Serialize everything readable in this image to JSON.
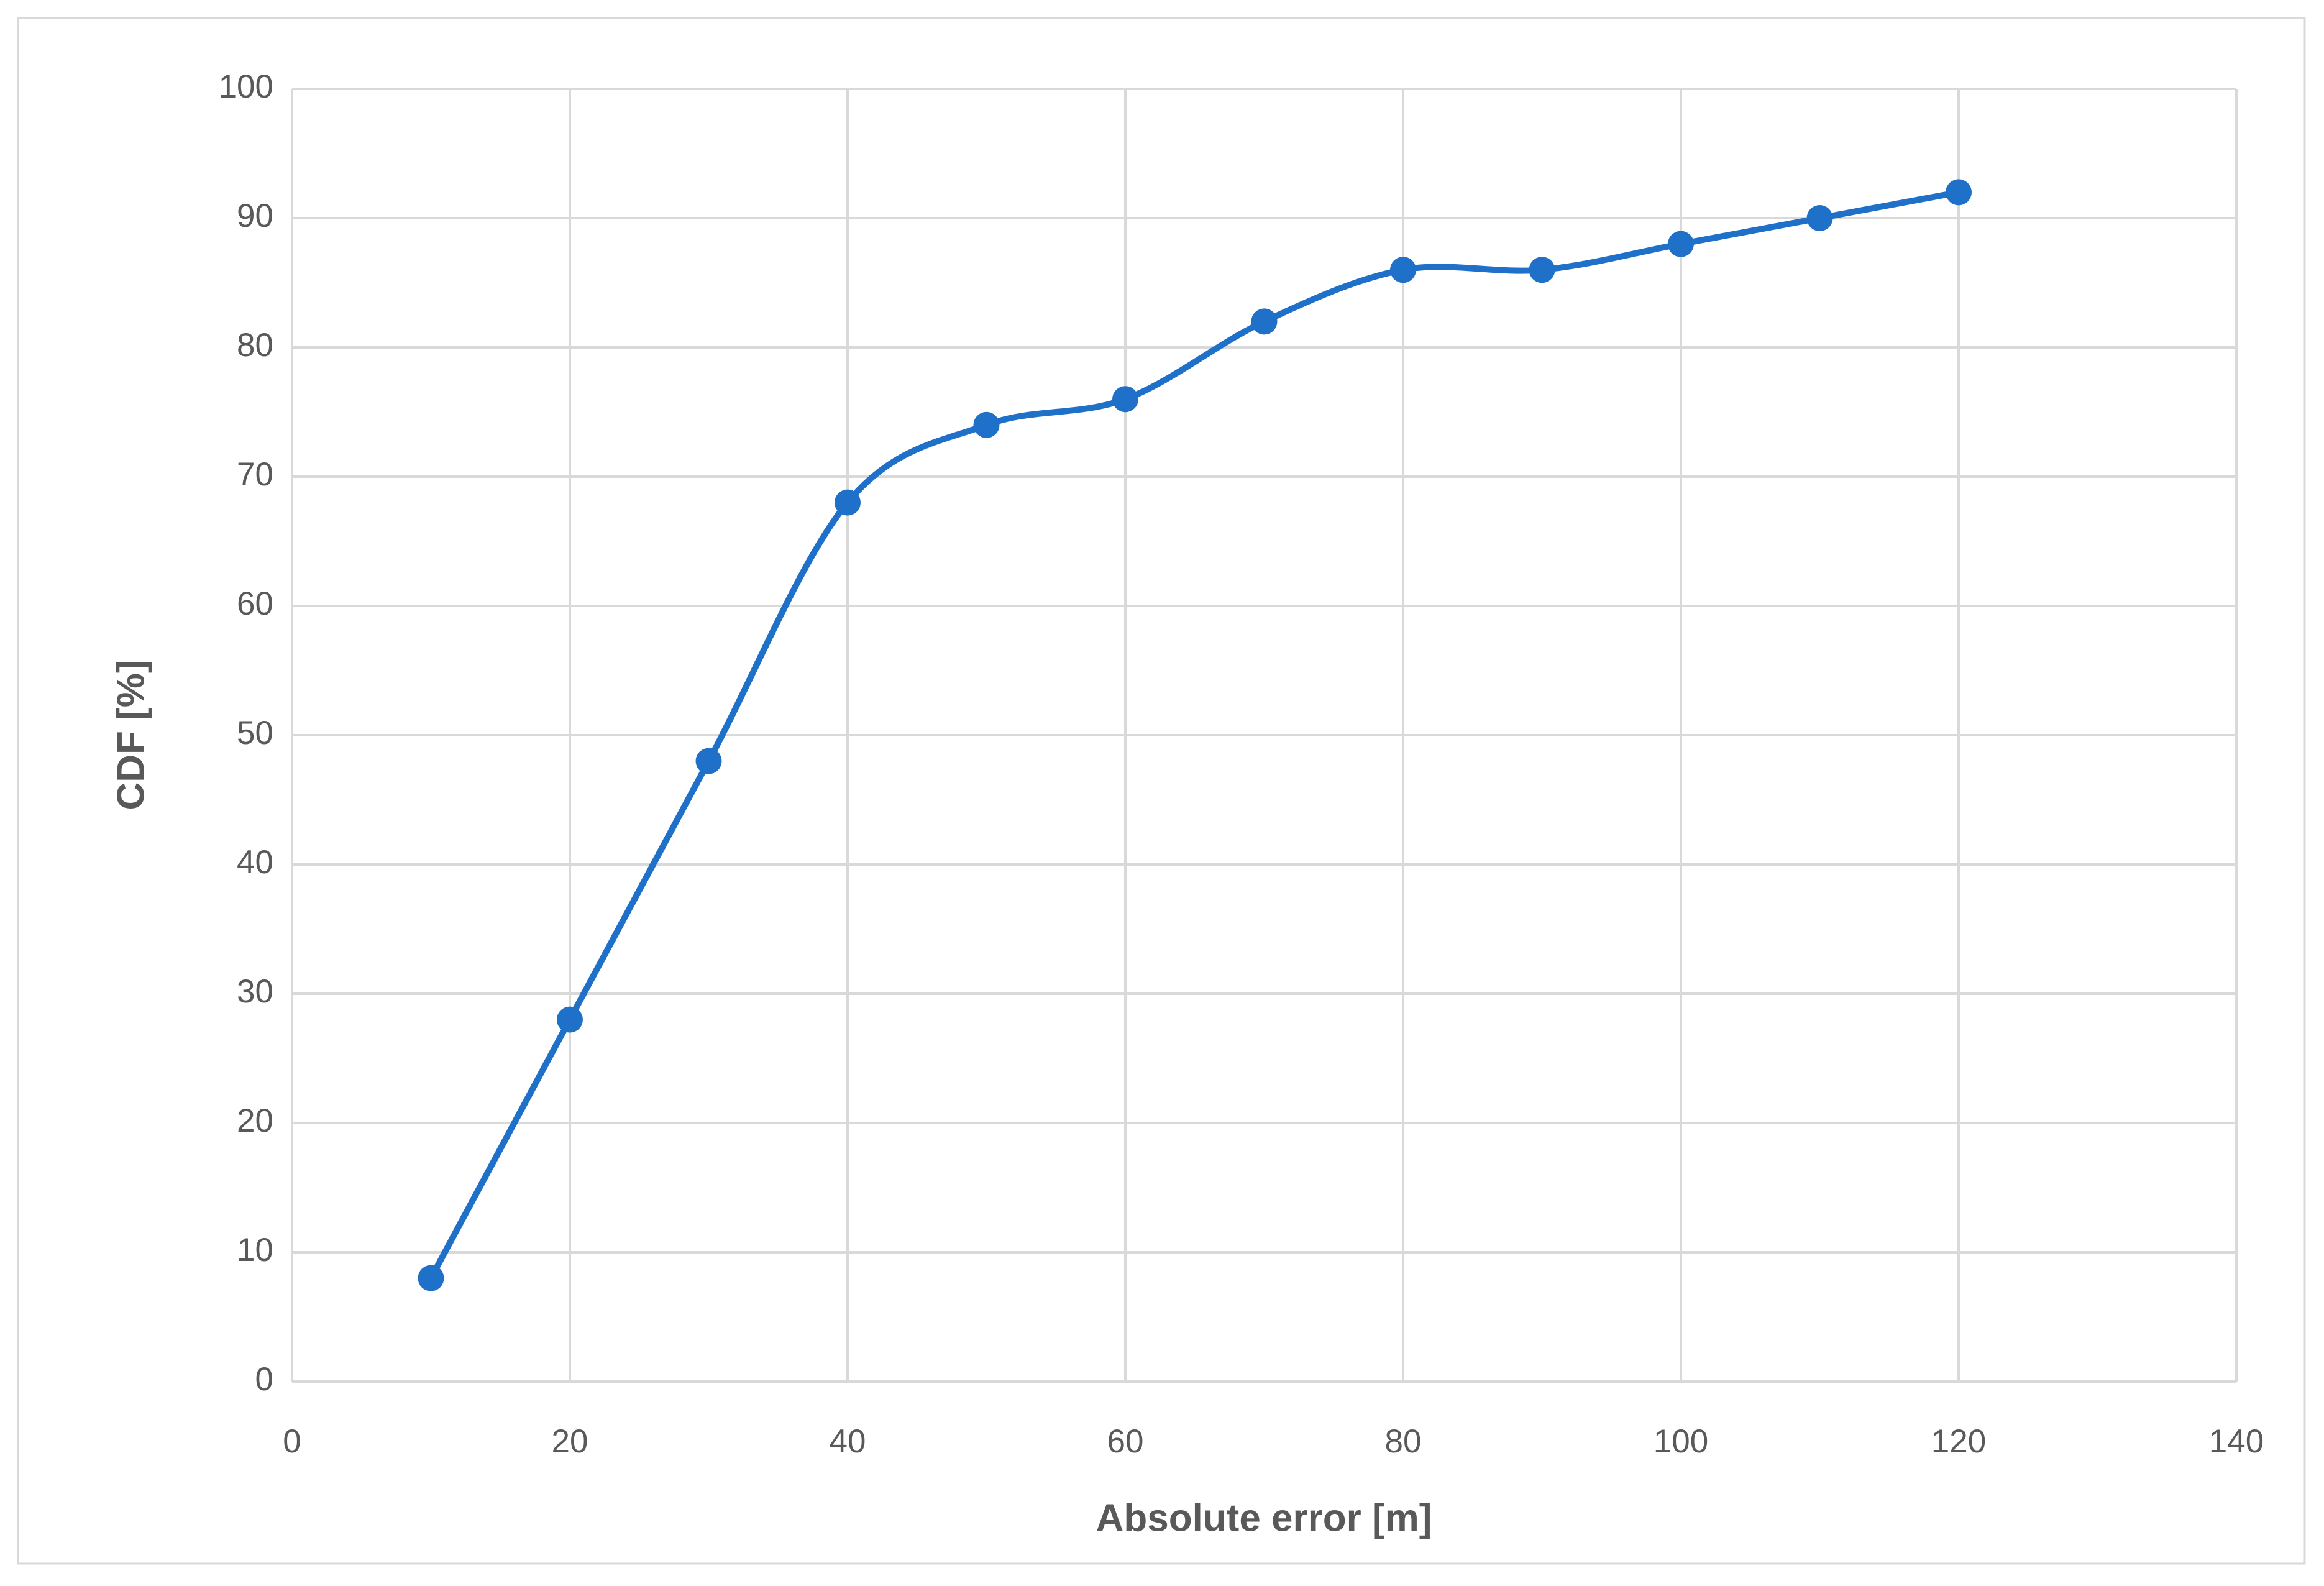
{
  "chart_data": {
    "type": "line",
    "smooth": true,
    "markers": true,
    "x_label": "Absolute error [m]",
    "y_label": "CDF [%]",
    "x": [
      10,
      20,
      30,
      40,
      50,
      60,
      70,
      80,
      90,
      100,
      110,
      120
    ],
    "values": [
      8,
      28,
      48,
      68,
      74,
      76,
      82,
      86,
      86,
      88,
      90,
      92
    ],
    "color": "#1f70c8",
    "xlim": [
      0,
      140
    ],
    "xticks": [
      0,
      20,
      40,
      60,
      80,
      100,
      120,
      140
    ],
    "ylim": [
      0,
      100
    ],
    "yticks": [
      0,
      10,
      20,
      30,
      40,
      50,
      60,
      70,
      80,
      90,
      100
    ],
    "grid": true
  }
}
